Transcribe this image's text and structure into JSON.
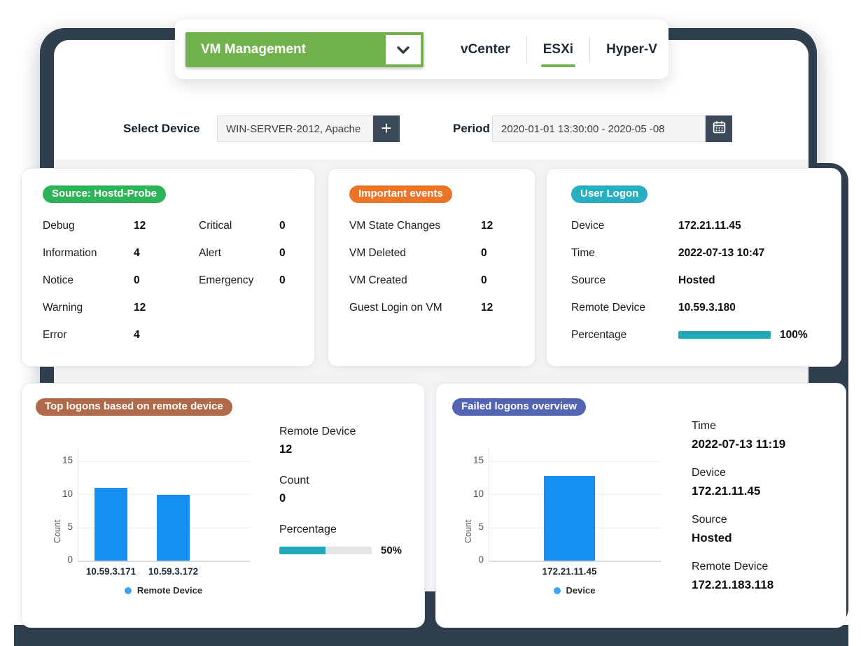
{
  "header": {
    "dropdown_label": "VM Management",
    "tabs": [
      {
        "label": "vCenter",
        "active": false
      },
      {
        "label": "ESXi",
        "active": true
      },
      {
        "label": "Hyper-V",
        "active": false
      }
    ]
  },
  "filters": {
    "device_label": "Select Device",
    "device_value": "WIN-SERVER-2012, Apache",
    "add_button_label": "+",
    "period_label": "Period",
    "period_value": "2020-01-01 13:30:00 - 2020-05 -08"
  },
  "colors": {
    "accent_green": "#71b24c",
    "badge_green": "#2eb358",
    "badge_orange": "#ec7426",
    "badge_teal": "#27aec0",
    "badge_brown": "#b06a4a",
    "badge_indigo": "#5464b4",
    "bar_blue": "#1590f2",
    "progress_teal": "#22a9b9",
    "backdrop_slate": "#2f3f4d"
  },
  "source_card": {
    "badge": "Source: Hostd-Probe",
    "rows_left": [
      {
        "label": "Debug",
        "value": "12"
      },
      {
        "label": "Information",
        "value": "4"
      },
      {
        "label": "Notice",
        "value": "0"
      },
      {
        "label": "Warning",
        "value": "12"
      },
      {
        "label": "Error",
        "value": "4"
      }
    ],
    "rows_right": [
      {
        "label": "Critical",
        "value": "0"
      },
      {
        "label": "Alert",
        "value": "0"
      },
      {
        "label": "Emergency",
        "value": "0"
      }
    ]
  },
  "events_card": {
    "badge": "Important events",
    "rows": [
      {
        "label": "VM State Changes",
        "value": "12"
      },
      {
        "label": "VM Deleted",
        "value": "0"
      },
      {
        "label": "VM Created",
        "value": "0"
      },
      {
        "label": "Guest Login on VM",
        "value": "12"
      }
    ]
  },
  "user_logon_card": {
    "badge": "User Logon",
    "rows": [
      {
        "label": "Device",
        "value": "172.21.11.45"
      },
      {
        "label": "Time",
        "value": "2022-07-13 10:47"
      },
      {
        "label": "Source",
        "value": "Hosted"
      },
      {
        "label": "Remote Device",
        "value": "10.59.3.180"
      }
    ],
    "percentage_label": "Percentage",
    "percentage_value": "100%",
    "percentage_fill": 100
  },
  "top_logons_card": {
    "badge": "Top logons based on remote device",
    "info": [
      {
        "label": "Remote Device",
        "value": "12"
      },
      {
        "label": "Count",
        "value": "0"
      }
    ],
    "percentage_label": "Percentage",
    "percentage_value": "50%",
    "percentage_fill": 50
  },
  "failed_logons_card": {
    "badge": "Failed logons overview",
    "info": [
      {
        "label": "Time",
        "value": "2022-07-13 11:19"
      },
      {
        "label": "Device",
        "value": "172.21.11.45"
      },
      {
        "label": "Source",
        "value": "Hosted"
      },
      {
        "label": "Remote Device",
        "value": "172.21.183.118"
      }
    ]
  },
  "chart_data": [
    {
      "type": "bar",
      "title": "Top logons based on remote device",
      "xlabel": "",
      "ylabel": "Count",
      "categories": [
        "10.59.3.171",
        "10.59.3.172"
      ],
      "values": [
        11,
        9.9
      ],
      "ylim": [
        0,
        15
      ],
      "yticks": [
        "15",
        "10",
        "5",
        "0"
      ],
      "legend": [
        "Remote Device"
      ],
      "grid": true,
      "legend_position": "bottom"
    },
    {
      "type": "bar",
      "title": "Failed logons overview",
      "xlabel": "",
      "ylabel": "Count",
      "categories": [
        "172.21.11.45"
      ],
      "values": [
        12.8
      ],
      "ylim": [
        0,
        15
      ],
      "yticks": [
        "15",
        "10",
        "5",
        "0"
      ],
      "legend": [
        "Device"
      ],
      "grid": true,
      "legend_position": "bottom"
    }
  ]
}
